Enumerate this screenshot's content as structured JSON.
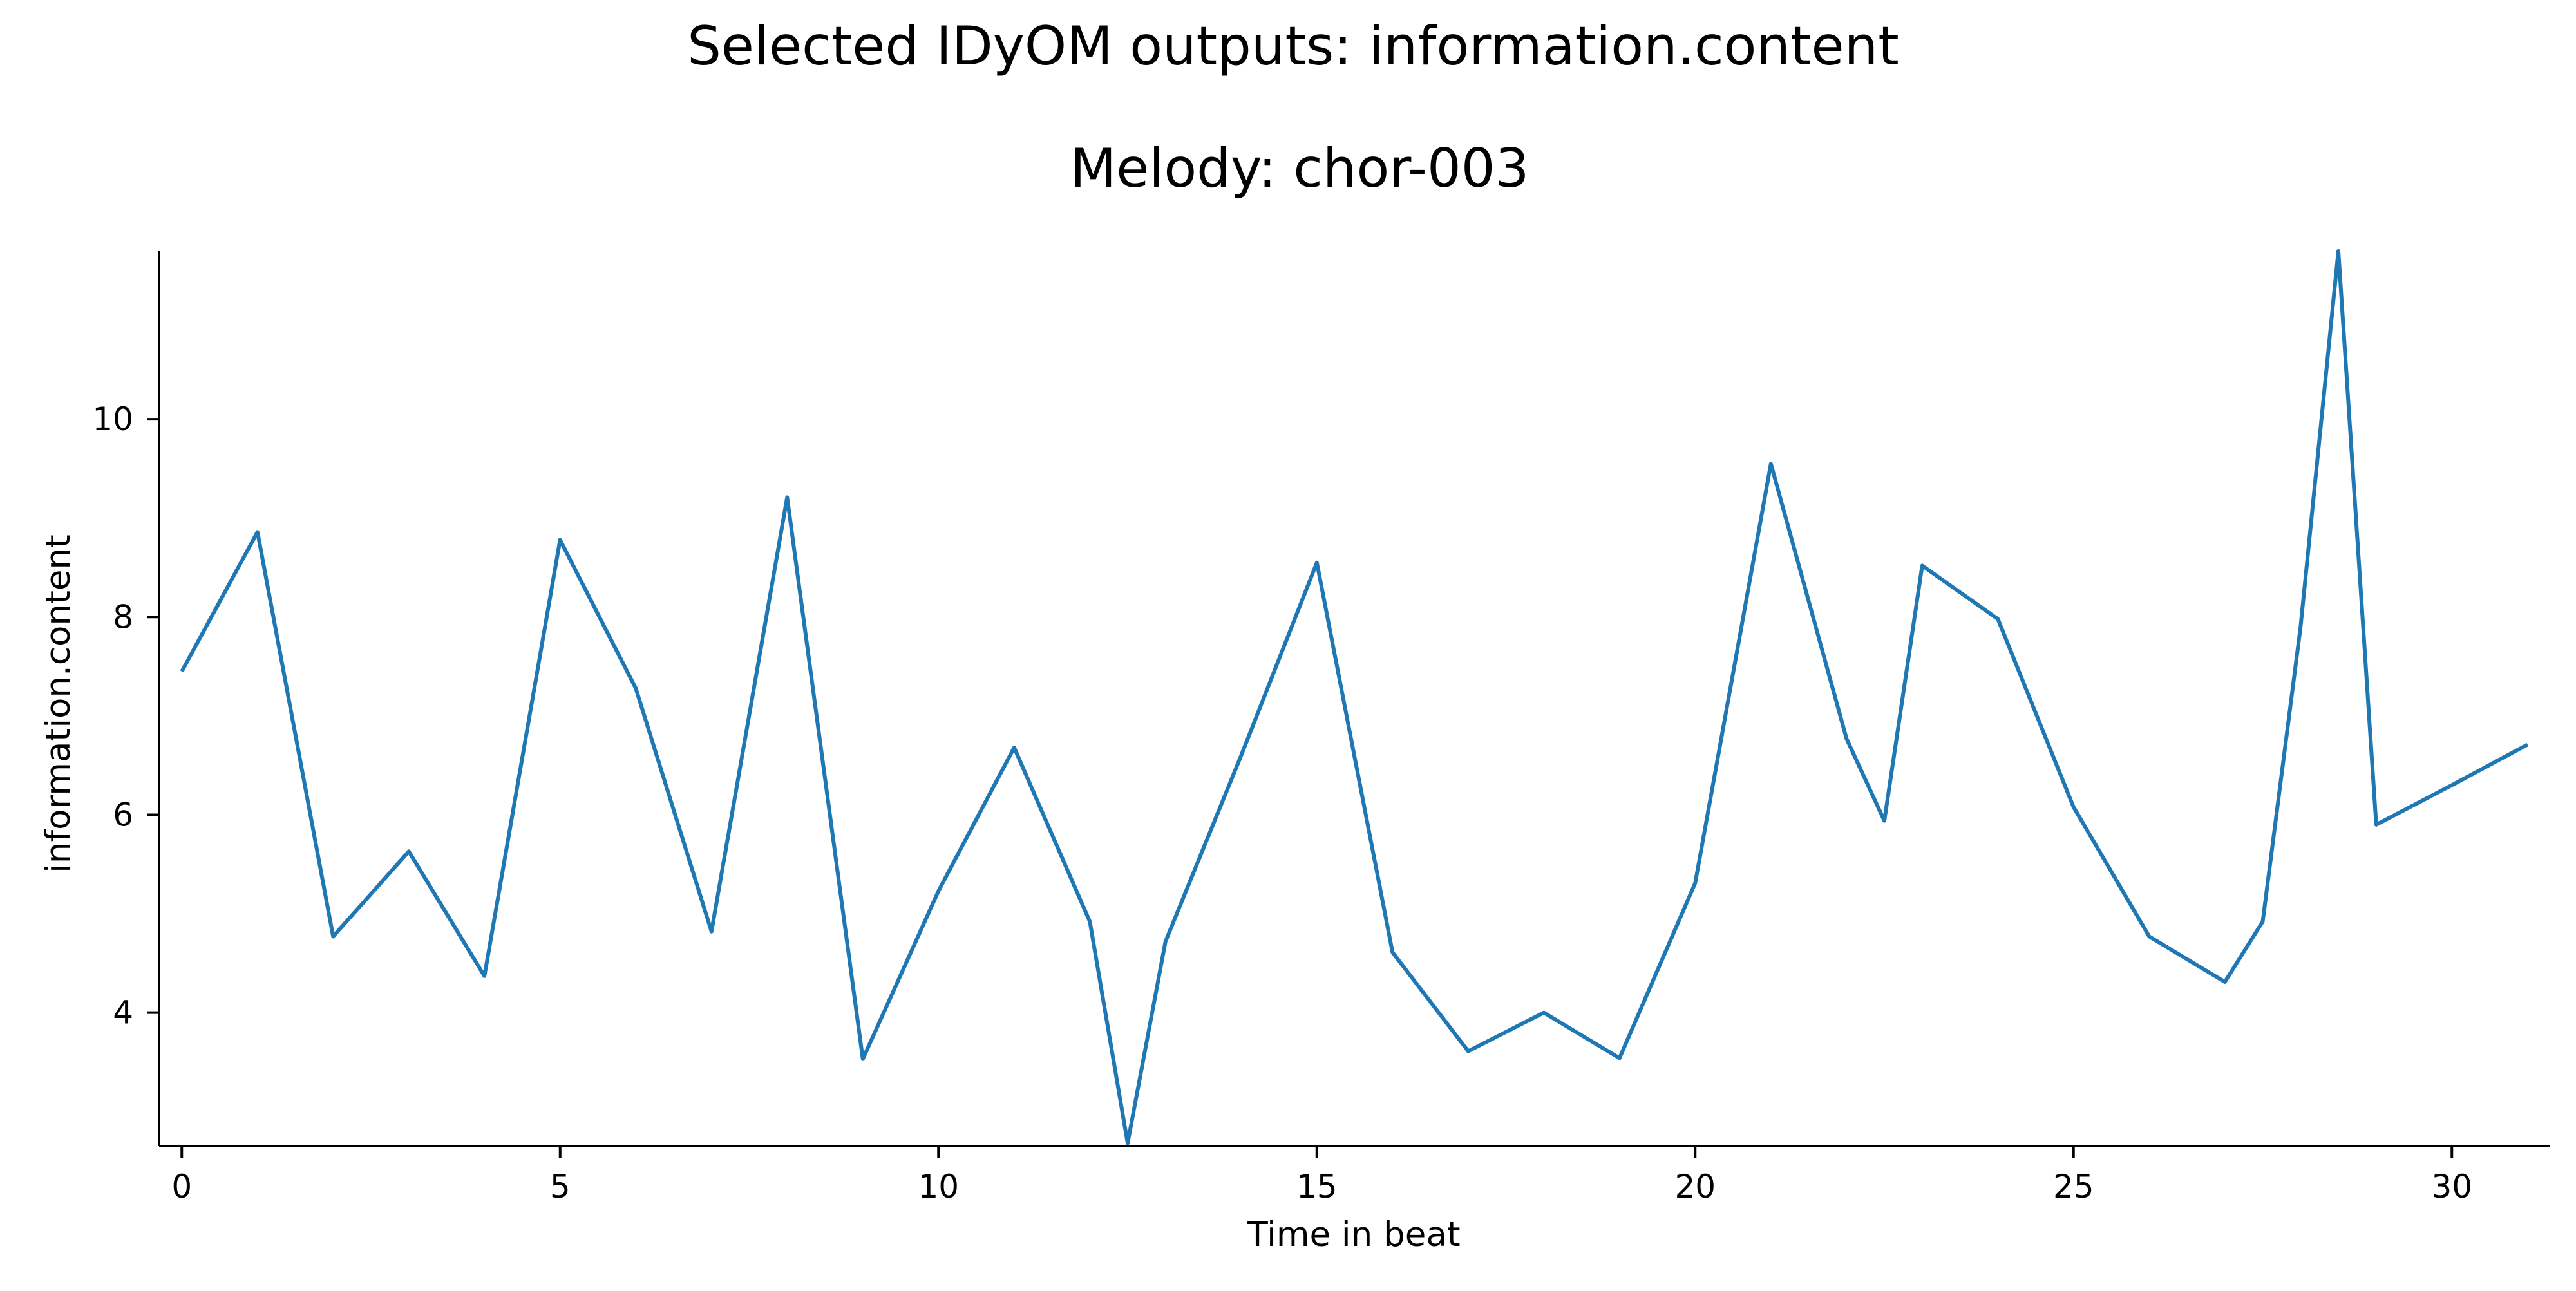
{
  "chart_data": {
    "type": "line",
    "title": "Selected IDyOM outputs: information.content",
    "subtitle": "Melody: chor-003",
    "xlabel": "Time in beat",
    "ylabel": "information.content",
    "xlim": [
      -0.3,
      31.3
    ],
    "ylim": [
      2.65,
      11.7
    ],
    "xticks": [
      0,
      5,
      10,
      15,
      20,
      25,
      30
    ],
    "yticks": [
      4,
      6,
      8,
      10
    ],
    "grid": false,
    "legend": "none",
    "series": [
      {
        "color": "#1f77b4",
        "x": [
          0,
          1,
          2,
          3,
          4,
          5,
          6,
          7,
          8,
          9,
          10,
          11,
          12,
          12.5,
          13,
          14,
          15,
          16,
          17,
          18,
          19,
          20,
          21,
          22,
          22.5,
          23,
          24,
          25,
          26,
          27,
          27.5,
          28,
          28.5,
          29,
          30,
          31
        ],
        "y": [
          7.45,
          8.86,
          4.77,
          5.63,
          4.37,
          8.78,
          7.28,
          4.82,
          9.21,
          3.53,
          5.23,
          6.68,
          4.92,
          2.68,
          4.72,
          6.6,
          8.55,
          4.61,
          3.61,
          4.0,
          3.54,
          5.31,
          9.55,
          6.77,
          5.94,
          8.52,
          7.98,
          6.08,
          4.77,
          4.31,
          4.92,
          7.9,
          11.7,
          5.9,
          6.3,
          6.71
        ]
      }
    ]
  }
}
